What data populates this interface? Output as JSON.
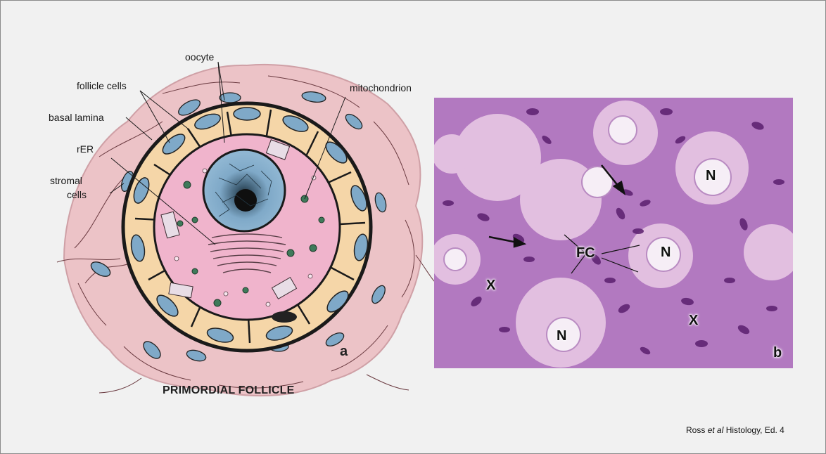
{
  "diagram": {
    "labels": {
      "oocyte": "oocyte",
      "follicle_cells": "follicle cells",
      "mitochondrion": "mitochondrion",
      "basal_lamina": "basal lamina",
      "rER": "rER",
      "stromal": "stromal",
      "cells": "cells"
    },
    "panel_letter": "a",
    "title": "PRIMORDIAL FOLLICLE"
  },
  "micrograph": {
    "labels": {
      "n1": "N",
      "n2": "N",
      "n3": "N",
      "fc": "FC",
      "x1": "X",
      "x2": "X"
    },
    "panel_letter": "b"
  },
  "credit": {
    "prefix": "Ross ",
    "italic": "et al",
    "suffix": " Histology, Ed. 4"
  },
  "colors": {
    "stroma_pink": "#ecc3c7",
    "follicle_cell": "#f5d6a8",
    "nucleus_blue": "#7fa9c8",
    "oocyte_pink": "#f0b4cc",
    "stain_purple": "#b279c0"
  }
}
